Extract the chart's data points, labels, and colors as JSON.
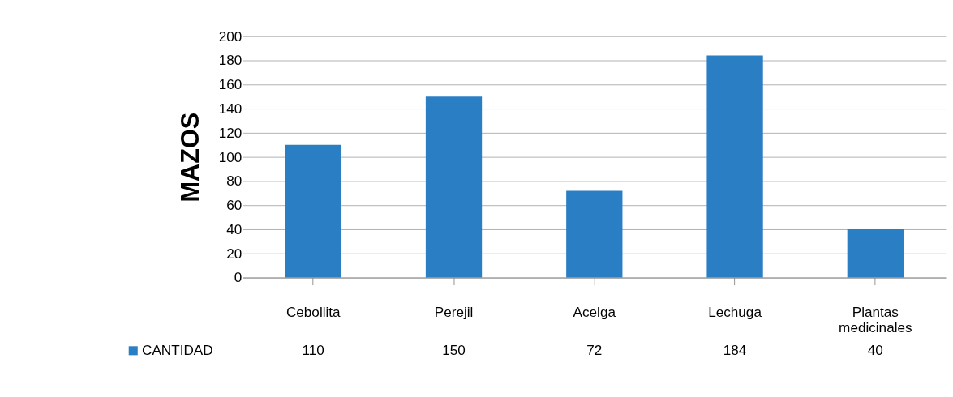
{
  "chart_data": {
    "type": "bar",
    "ylabel": "MAZOS",
    "categories": [
      "Cebollita",
      "Perejil",
      "Acelga",
      "Lechuga",
      "Plantas medicinales"
    ],
    "series": [
      {
        "name": "CANTIDAD",
        "color": "#2a7fc4",
        "values": [
          110,
          150,
          72,
          184,
          40
        ]
      }
    ],
    "ylim": [
      0,
      200
    ],
    "yticks": [
      0,
      20,
      40,
      60,
      80,
      100,
      120,
      140,
      160,
      180,
      200
    ],
    "grid": "y",
    "legend": "bottom left",
    "data_labels": true
  }
}
